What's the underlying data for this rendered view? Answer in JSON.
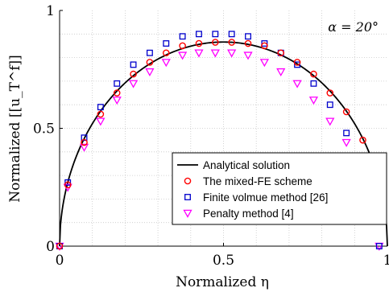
{
  "chart_data": {
    "type": "scatter",
    "annotation": "α = 20°",
    "xlabel": "Normalized η",
    "ylabel": "Normalized [[u_T^f]]",
    "xlim": [
      0,
      1
    ],
    "ylim": [
      0,
      1
    ],
    "xticks": [
      {
        "value": 0,
        "label": "0"
      },
      {
        "value": 0.5,
        "label": "0.5"
      },
      {
        "value": 1,
        "label": "1"
      }
    ],
    "yticks": [
      {
        "value": 0,
        "label": "0"
      },
      {
        "value": 0.5,
        "label": "0.5"
      },
      {
        "value": 1,
        "label": "1"
      }
    ],
    "grid": true,
    "legend_position": "lower-right",
    "series": [
      {
        "name": "Analytical solution",
        "kind": "line",
        "color": "#000000",
        "formula": "0.866 * sqrt(1 - (2x - 1)^2)"
      },
      {
        "name": "The mixed-FE scheme",
        "kind": "marker",
        "marker": "circle",
        "color": "#ff0000",
        "x": [
          0.0,
          0.025,
          0.075,
          0.125,
          0.175,
          0.225,
          0.275,
          0.325,
          0.375,
          0.425,
          0.475,
          0.525,
          0.575,
          0.625,
          0.675,
          0.725,
          0.775,
          0.825,
          0.875,
          0.925,
          0.975
        ],
        "y": [
          0.0,
          0.26,
          0.44,
          0.56,
          0.65,
          0.73,
          0.78,
          0.82,
          0.85,
          0.86,
          0.865,
          0.865,
          0.86,
          0.85,
          0.82,
          0.78,
          0.73,
          0.65,
          0.57,
          0.45,
          0.26
        ]
      },
      {
        "name": "Finite volmue method [26]",
        "kind": "marker",
        "marker": "square",
        "color": "#0000cc",
        "x": [
          0.0,
          0.025,
          0.075,
          0.125,
          0.175,
          0.225,
          0.275,
          0.325,
          0.375,
          0.425,
          0.475,
          0.525,
          0.575,
          0.625,
          0.675,
          0.725,
          0.775,
          0.825,
          0.875,
          0.925,
          0.975
        ],
        "y": [
          0.0,
          0.27,
          0.46,
          0.59,
          0.69,
          0.77,
          0.82,
          0.86,
          0.89,
          0.9,
          0.9,
          0.9,
          0.89,
          0.86,
          0.82,
          0.77,
          0.69,
          0.6,
          0.48,
          0.27,
          0.0
        ]
      },
      {
        "name": "Penalty method [4]",
        "kind": "marker",
        "marker": "triangle-down",
        "color": "#ff00ff",
        "x": [
          0.0,
          0.025,
          0.075,
          0.125,
          0.175,
          0.225,
          0.275,
          0.325,
          0.375,
          0.425,
          0.475,
          0.525,
          0.575,
          0.625,
          0.675,
          0.725,
          0.775,
          0.825,
          0.875,
          0.925,
          0.975
        ],
        "y": [
          0.0,
          0.25,
          0.42,
          0.53,
          0.62,
          0.69,
          0.74,
          0.78,
          0.81,
          0.82,
          0.82,
          0.82,
          0.81,
          0.78,
          0.74,
          0.69,
          0.62,
          0.53,
          0.44,
          0.25,
          0.0
        ]
      }
    ]
  }
}
